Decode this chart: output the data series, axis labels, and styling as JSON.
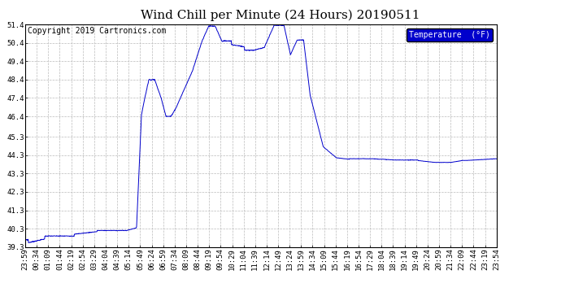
{
  "title": "Wind Chill per Minute (24 Hours) 20190511",
  "copyright": "Copyright 2019 Cartronics.com",
  "legend_label": "Temperature  (°F)",
  "line_color": "#0000cc",
  "background_color": "#ffffff",
  "plot_bg_color": "#ffffff",
  "grid_color": "#bbbbbb",
  "ylim_min": 39.3,
  "ylim_max": 51.4,
  "yticks": [
    39.3,
    40.3,
    41.3,
    42.3,
    43.3,
    44.3,
    45.3,
    46.4,
    47.4,
    48.4,
    49.4,
    50.4,
    51.4
  ],
  "xtick_labels": [
    "23:59",
    "00:34",
    "01:09",
    "01:44",
    "02:19",
    "02:54",
    "03:29",
    "04:04",
    "04:39",
    "05:14",
    "05:49",
    "06:24",
    "06:59",
    "07:34",
    "08:09",
    "08:44",
    "09:19",
    "09:54",
    "10:29",
    "11:04",
    "11:39",
    "12:14",
    "12:49",
    "13:24",
    "13:59",
    "14:34",
    "15:09",
    "15:44",
    "16:19",
    "16:54",
    "17:29",
    "18:04",
    "18:39",
    "19:14",
    "19:49",
    "20:24",
    "20:59",
    "21:34",
    "22:09",
    "22:44",
    "23:19",
    "23:54"
  ],
  "title_fontsize": 11,
  "tick_fontsize": 6.5,
  "copyright_fontsize": 7
}
